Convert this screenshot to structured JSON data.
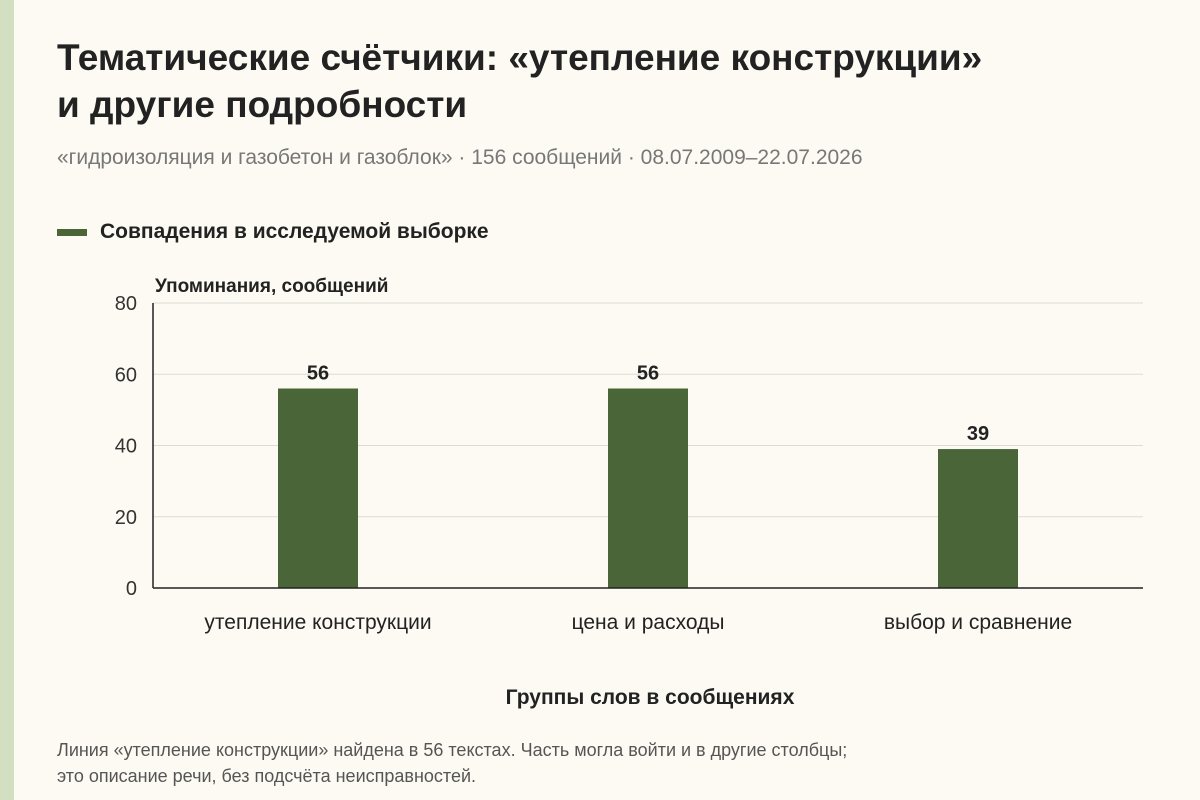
{
  "title_line1": "Тематические счётчики: «утепление конструкции»",
  "title_line2": "и другие подробности",
  "subtitle": "«гидроизоляция и газобетон и газоблок» · 156 сообщений · 08.07.2009–22.07.2026",
  "footnote_line1": "Линия «утепление конструкции» найдена в 56 текстах. Часть могла войти и в другие столбцы;",
  "footnote_line2": "это описание речи, без подсчёта неисправностей.",
  "colors": {
    "background": "#fcfaf2",
    "bar": "#4a6639",
    "grid": "#dcdcd4",
    "stripe": "#d3dfc1"
  },
  "chart_data": {
    "type": "bar",
    "categories": [
      "утепление конструкции",
      "цена и расходы",
      "выбор и сравнение"
    ],
    "series": [
      {
        "name": "Совпадения в исследуемой выборке",
        "values": [
          56,
          56,
          39
        ]
      }
    ],
    "xlabel": "Группы слов в сообщениях",
    "ylabel": "Упоминания, сообщений",
    "ylim": [
      0,
      80
    ],
    "yticks": [
      0,
      20,
      40,
      60,
      80
    ],
    "grid": true,
    "legend_position": "top-left",
    "data_labels": true
  }
}
